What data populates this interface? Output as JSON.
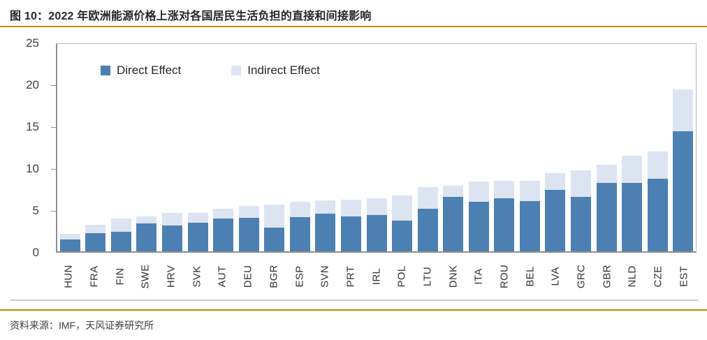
{
  "header": {
    "title": "图 10：2022 年欧洲能源价格上涨对各国居民生活负担的直接和间接影响"
  },
  "footer": {
    "source": "资料来源：IMF，天风证券研究所"
  },
  "colors": {
    "direct": "#4D80B2",
    "indirect": "#DCE4F2",
    "rule": "#C5860E",
    "axis": "#8f8f8f"
  },
  "chart_data": {
    "type": "bar",
    "stacked": true,
    "title": "",
    "xlabel": "",
    "ylabel": "",
    "ylim": [
      0,
      25
    ],
    "yticks": [
      0,
      5,
      10,
      15,
      20,
      25
    ],
    "grid": false,
    "legend_position": "top-left-inside",
    "categories": [
      "HUN",
      "FRA",
      "FIN",
      "SWE",
      "HRV",
      "SVK",
      "AUT",
      "DEU",
      "BGR",
      "ESP",
      "SVN",
      "PRT",
      "IRL",
      "POL",
      "LTU",
      "DNK",
      "ITA",
      "ROU",
      "BEL",
      "LVA",
      "GRC",
      "GBR",
      "NLD",
      "CZE",
      "EST"
    ],
    "series": [
      {
        "name": "Direct Effect",
        "color": "#4D80B2",
        "values": [
          1.4,
          2.2,
          2.3,
          3.3,
          3.1,
          3.4,
          3.9,
          4.0,
          2.8,
          4.1,
          4.5,
          4.2,
          4.3,
          3.7,
          5.1,
          6.5,
          5.9,
          6.3,
          6.0,
          7.3,
          6.5,
          8.2,
          8.2,
          8.7,
          14.3
        ]
      },
      {
        "name": "Indirect Effect",
        "color": "#DCE4F2",
        "values": [
          0.7,
          1.0,
          1.6,
          0.9,
          1.5,
          1.2,
          1.2,
          1.4,
          2.8,
          1.8,
          1.6,
          2.0,
          2.0,
          3.0,
          2.6,
          1.3,
          2.4,
          2.1,
          2.4,
          2.0,
          3.2,
          2.1,
          3.2,
          3.2,
          5.0
        ]
      }
    ]
  }
}
